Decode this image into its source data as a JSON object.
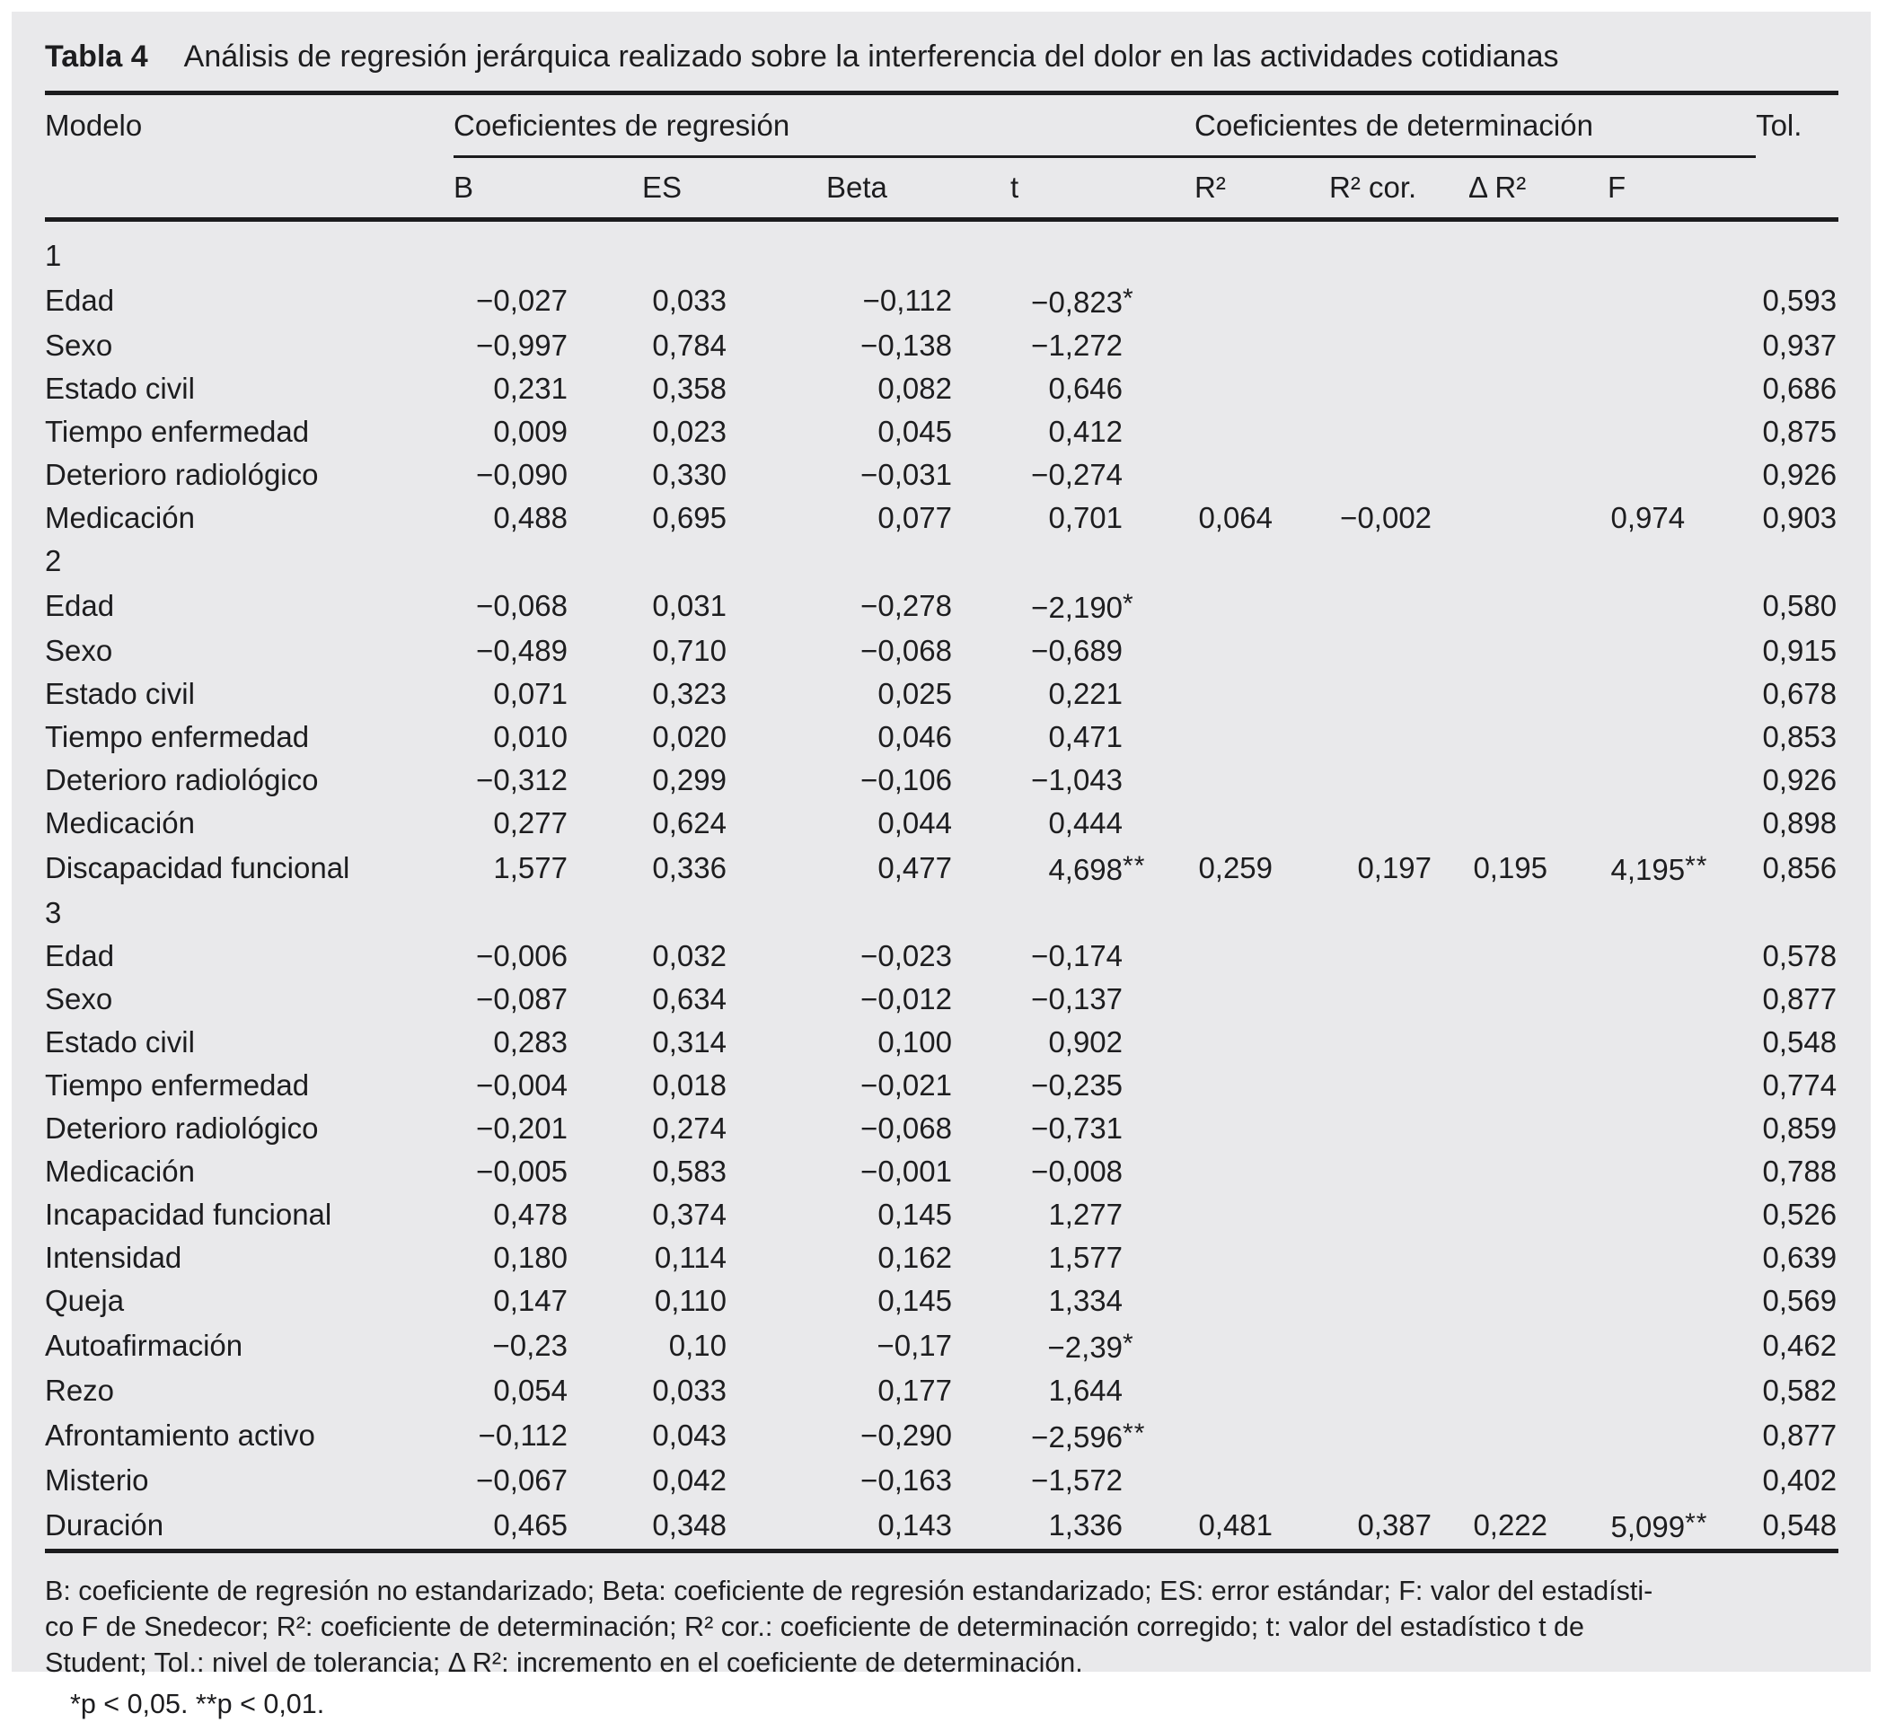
{
  "title": {
    "label": "Tabla 4",
    "text": "Análisis de regresión jerárquica realizado sobre la interferencia del dolor en las actividades cotidianas"
  },
  "colors": {
    "card_bg": "#e9e9eb",
    "text": "#1d1d1f",
    "rule": "#1c1c1e"
  },
  "table": {
    "col_groups": {
      "modelo": "Modelo",
      "regresion": "Coeficientes de regresión",
      "determinacion": "Coeficientes de determinación",
      "tol": "Tol."
    },
    "sub_columns": [
      "B",
      "ES",
      "Beta",
      "t",
      "R²",
      "R² cor.",
      "Δ R²",
      "F"
    ],
    "col_keys": [
      "b",
      "es",
      "beta",
      "t",
      "r2",
      "r2cor",
      "delta-r2",
      "f",
      "tol"
    ],
    "rows": [
      {
        "type": "group",
        "label": "1"
      },
      {
        "type": "data",
        "label": "Edad",
        "values": [
          "−0,027",
          "0,033",
          "−0,112",
          "−0,823*",
          "",
          "",
          "",
          "",
          "0,593"
        ]
      },
      {
        "type": "data",
        "label": "Sexo",
        "values": [
          "−0,997",
          "0,784",
          "−0,138",
          "−1,272",
          "",
          "",
          "",
          "",
          "0,937"
        ]
      },
      {
        "type": "data",
        "label": "Estado civil",
        "values": [
          "0,231",
          "0,358",
          "0,082",
          "0,646",
          "",
          "",
          "",
          "",
          "0,686"
        ]
      },
      {
        "type": "data",
        "label": "Tiempo enfermedad",
        "values": [
          "0,009",
          "0,023",
          "0,045",
          "0,412",
          "",
          "",
          "",
          "",
          "0,875"
        ]
      },
      {
        "type": "data",
        "label": "Deterioro radiológico",
        "values": [
          "−0,090",
          "0,330",
          "−0,031",
          "−0,274",
          "",
          "",
          "",
          "",
          "0,926"
        ]
      },
      {
        "type": "data",
        "label": "Medicación",
        "values": [
          "0,488",
          "0,695",
          "0,077",
          "0,701",
          "0,064",
          "−0,002",
          "",
          "0,974",
          "0,903"
        ]
      },
      {
        "type": "group",
        "label": "2"
      },
      {
        "type": "data",
        "label": "Edad",
        "values": [
          "−0,068",
          "0,031",
          "−0,278",
          "−2,190*",
          "",
          "",
          "",
          "",
          "0,580"
        ]
      },
      {
        "type": "data",
        "label": "Sexo",
        "values": [
          "−0,489",
          "0,710",
          "−0,068",
          "−0,689",
          "",
          "",
          "",
          "",
          "0,915"
        ]
      },
      {
        "type": "data",
        "label": "Estado civil",
        "values": [
          "0,071",
          "0,323",
          "0,025",
          "0,221",
          "",
          "",
          "",
          "",
          "0,678"
        ]
      },
      {
        "type": "data",
        "label": "Tiempo enfermedad",
        "values": [
          "0,010",
          "0,020",
          "0,046",
          "0,471",
          "",
          "",
          "",
          "",
          "0,853"
        ]
      },
      {
        "type": "data",
        "label": "Deterioro radiológico",
        "values": [
          "−0,312",
          "0,299",
          "−0,106",
          "−1,043",
          "",
          "",
          "",
          "",
          "0,926"
        ]
      },
      {
        "type": "data",
        "label": "Medicación",
        "values": [
          "0,277",
          "0,624",
          "0,044",
          "0,444",
          "",
          "",
          "",
          "",
          "0,898"
        ]
      },
      {
        "type": "data",
        "label": "Discapacidad funcional",
        "values": [
          "1,577",
          "0,336",
          "0,477",
          "4,698**",
          "0,259",
          "0,197",
          "0,195",
          "4,195**",
          "0,856"
        ]
      },
      {
        "type": "group",
        "label": "3"
      },
      {
        "type": "data",
        "label": "Edad",
        "values": [
          "−0,006",
          "0,032",
          "−0,023",
          "−0,174",
          "",
          "",
          "",
          "",
          "0,578"
        ]
      },
      {
        "type": "data",
        "label": "Sexo",
        "values": [
          "−0,087",
          "0,634",
          "−0,012",
          "−0,137",
          "",
          "",
          "",
          "",
          "0,877"
        ]
      },
      {
        "type": "data",
        "label": "Estado civil",
        "values": [
          "0,283",
          "0,314",
          "0,100",
          "0,902",
          "",
          "",
          "",
          "",
          "0,548"
        ]
      },
      {
        "type": "data",
        "label": "Tiempo enfermedad",
        "values": [
          "−0,004",
          "0,018",
          "−0,021",
          "−0,235",
          "",
          "",
          "",
          "",
          "0,774"
        ]
      },
      {
        "type": "data",
        "label": "Deterioro radiológico",
        "values": [
          "−0,201",
          "0,274",
          "−0,068",
          "−0,731",
          "",
          "",
          "",
          "",
          "0,859"
        ]
      },
      {
        "type": "data",
        "label": "Medicación",
        "values": [
          "−0,005",
          "0,583",
          "−0,001",
          "−0,008",
          "",
          "",
          "",
          "",
          "0,788"
        ]
      },
      {
        "type": "data",
        "label": "Incapacidad funcional",
        "values": [
          "0,478",
          "0,374",
          "0,145",
          "1,277",
          "",
          "",
          "",
          "",
          "0,526"
        ]
      },
      {
        "type": "data",
        "label": "Intensidad",
        "values": [
          "0,180",
          "0,114",
          "0,162",
          "1,577",
          "",
          "",
          "",
          "",
          "0,639"
        ]
      },
      {
        "type": "data",
        "label": "Queja",
        "values": [
          "0,147",
          "0,110",
          "0,145",
          "1,334",
          "",
          "",
          "",
          "",
          "0,569"
        ]
      },
      {
        "type": "data",
        "label": "Autoafirmación",
        "values": [
          "−0,23",
          "0,10",
          "−0,17",
          "−2,39*",
          "",
          "",
          "",
          "",
          "0,462"
        ]
      },
      {
        "type": "data",
        "label": "Rezo",
        "values": [
          "0,054",
          "0,033",
          "0,177",
          "1,644",
          "",
          "",
          "",
          "",
          "0,582"
        ]
      },
      {
        "type": "data",
        "label": "Afrontamiento activo",
        "values": [
          "−0,112",
          "0,043",
          "−0,290",
          "−2,596**",
          "",
          "",
          "",
          "",
          "0,877"
        ]
      },
      {
        "type": "data",
        "label": "Misterio",
        "values": [
          "−0,067",
          "0,042",
          "−0,163",
          "−1,572",
          "",
          "",
          "",
          "",
          "0,402"
        ]
      },
      {
        "type": "data",
        "label": "Duración",
        "values": [
          "0,465",
          "0,348",
          "0,143",
          "1,336",
          "0,481",
          "0,387",
          "0,222",
          "5,099**",
          "0,548"
        ]
      }
    ]
  },
  "footnote": {
    "lines": [
      "B: coeficiente de regresión no estandarizado; Beta: coeficiente de regresión estandarizado; ES: error estándar; F: valor del estadísti-",
      "co F de Snedecor; R²: coeficiente de determinación; R² cor.: coeficiente de determinación corregido; t: valor del estadístico t de",
      "Student; Tol.: nivel de tolerancia; Δ R²: incremento en el coeficiente de determinación."
    ],
    "significance": "*p < 0,05. **p < 0,01."
  }
}
